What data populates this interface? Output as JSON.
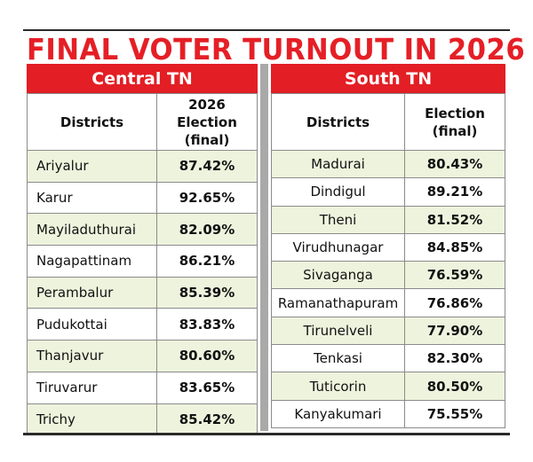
{
  "title": "FINAL VOTER TURNOUT IN 2026",
  "central": {
    "heading": "Central TN",
    "col_district": "Districts",
    "col_value_line1": "2026 Election",
    "col_value_line2": "(final)",
    "rows": [
      {
        "district": "Ariyalur",
        "turnout": "87.42%"
      },
      {
        "district": "Karur",
        "turnout": "92.65%"
      },
      {
        "district": "Mayiladuthurai",
        "turnout": "82.09%"
      },
      {
        "district": "Nagapattinam",
        "turnout": "86.21%"
      },
      {
        "district": "Perambalur",
        "turnout": "85.39%"
      },
      {
        "district": "Pudukottai",
        "turnout": "83.83%"
      },
      {
        "district": "Thanjavur",
        "turnout": "80.60%"
      },
      {
        "district": "Tiruvarur",
        "turnout": "83.65%"
      },
      {
        "district": "Trichy",
        "turnout": "85.42%"
      }
    ]
  },
  "south": {
    "heading": "South TN",
    "col_district": "Districts",
    "col_value_line1": "Election",
    "col_value_line2": "(final)",
    "rows": [
      {
        "district": "Madurai",
        "turnout": "80.43%"
      },
      {
        "district": "Dindigul",
        "turnout": "89.21%"
      },
      {
        "district": "Theni",
        "turnout": "81.52%"
      },
      {
        "district": "Virudhunagar",
        "turnout": "84.85%"
      },
      {
        "district": "Sivaganga",
        "turnout": "76.59%"
      },
      {
        "district": "Ramanathapuram",
        "turnout": "76.86%"
      },
      {
        "district": "Tirunelveli",
        "turnout": "77.90%"
      },
      {
        "district": "Tenkasi",
        "turnout": "82.30%"
      },
      {
        "district": "Tuticorin",
        "turnout": "80.50%"
      },
      {
        "district": "Kanyakumari",
        "turnout": "75.55%"
      }
    ]
  },
  "colors": {
    "accent_red": "#e31e25",
    "row_tint": "#eef3dd",
    "divider_gray": "#a9a9a9"
  }
}
